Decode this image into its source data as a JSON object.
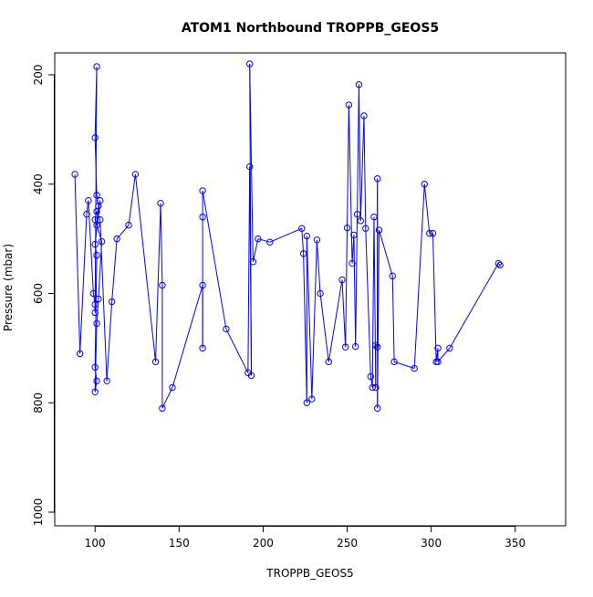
{
  "chart_data": {
    "type": "line",
    "title": "ATOM1 Northbound TROPPB_GEOS5",
    "xlabel": "TROPPB_GEOS5",
    "ylabel": "Pressure (mbar)",
    "xlim": [
      76,
      380
    ],
    "ylim": [
      1025,
      160
    ],
    "y_reversed": true,
    "x_ticks": [
      100,
      150,
      200,
      250,
      300,
      350
    ],
    "y_ticks": [
      200,
      400,
      600,
      800,
      1000
    ],
    "grid": false,
    "legend": "none",
    "series_color": "#0000ff",
    "marker": "open-circle",
    "x": [
      88,
      91,
      95,
      96,
      99,
      100,
      100,
      101,
      100,
      101,
      102,
      101,
      103,
      100,
      101,
      100,
      101,
      100,
      101,
      102,
      104,
      100,
      101,
      103,
      107,
      110,
      113,
      120,
      124,
      136,
      139,
      140,
      140,
      146,
      164,
      164,
      164,
      164,
      178,
      191,
      192,
      193,
      192,
      194,
      197,
      204,
      223,
      224,
      226,
      226,
      229,
      232,
      234,
      239,
      247,
      249,
      250,
      251,
      253,
      254,
      255,
      256,
      257,
      258,
      260,
      261,
      264,
      265,
      266,
      267,
      267,
      268,
      268,
      268,
      269,
      277,
      278,
      290,
      296,
      299,
      301,
      303,
      304,
      304,
      311,
      340,
      341
    ],
    "y": [
      382,
      710,
      455,
      430,
      600,
      620,
      635,
      185,
      315,
      420,
      440,
      475,
      430,
      510,
      530,
      735,
      760,
      780,
      655,
      610,
      505,
      465,
      450,
      465,
      760,
      615,
      500,
      475,
      382,
      725,
      435,
      585,
      810,
      772,
      585,
      700,
      460,
      412,
      665,
      745,
      368,
      750,
      180,
      542,
      500,
      506,
      481,
      527,
      800,
      495,
      793,
      502,
      600,
      725,
      575,
      698,
      480,
      255,
      545,
      493,
      697,
      455,
      218,
      467,
      275,
      481,
      752,
      772,
      460,
      772,
      695,
      698,
      390,
      810,
      484,
      568,
      725,
      737,
      400,
      490,
      490,
      725,
      700,
      725,
      700,
      545,
      548
    ]
  }
}
